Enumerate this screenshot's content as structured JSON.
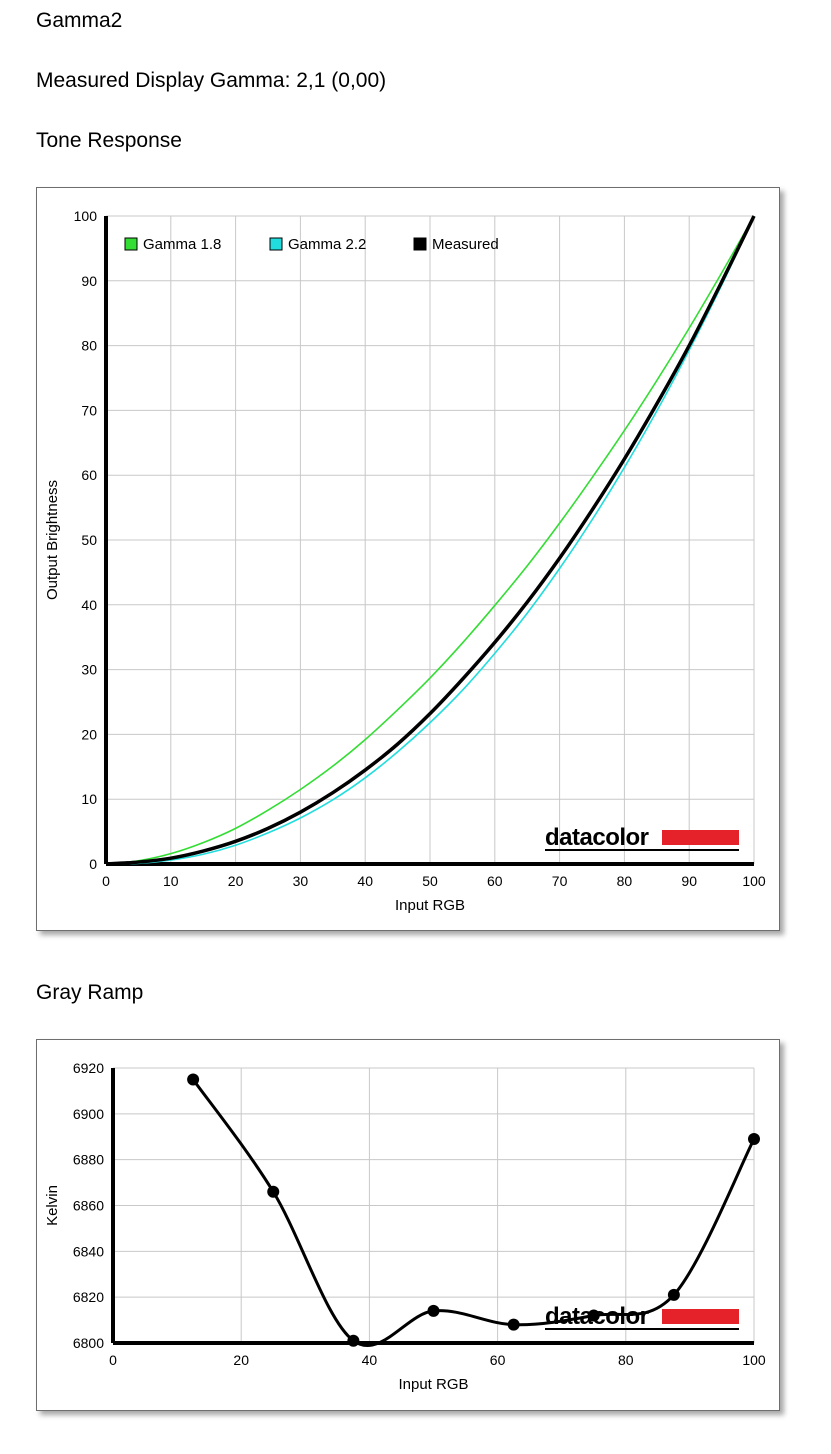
{
  "page": {
    "title": "Gamma2",
    "measured_gamma": "Measured Display Gamma: 2,1 (0,00)",
    "tone_heading": "Tone Response",
    "gray_heading": "Gray Ramp"
  },
  "logo": {
    "text": "datacolor",
    "color": "#e5222a"
  },
  "chart_data": [
    {
      "type": "line",
      "xlabel": "Input RGB",
      "ylabel": "Output Brightness",
      "xlim": [
        0,
        100
      ],
      "ylim": [
        0,
        100
      ],
      "x_ticks": [
        0,
        10,
        20,
        30,
        40,
        50,
        60,
        70,
        80,
        90,
        100
      ],
      "y_ticks": [
        0,
        10,
        20,
        30,
        40,
        50,
        60,
        70,
        80,
        90,
        100
      ],
      "grid": true,
      "legend": "top-left",
      "series": [
        {
          "name": "Gamma 1.8",
          "color": "#33dd33",
          "gamma": 1.8,
          "x": [
            0,
            5,
            10,
            15,
            20,
            25,
            30,
            35,
            40,
            45,
            50,
            55,
            60,
            65,
            70,
            75,
            80,
            85,
            90,
            95,
            100
          ],
          "y": [
            0,
            0.5,
            1.6,
            3.3,
            5.5,
            8.3,
            11.5,
            15.1,
            19.2,
            23.8,
            28.7,
            34.1,
            39.9,
            46.0,
            52.6,
            59.6,
            66.9,
            74.6,
            82.7,
            91.2,
            100
          ]
        },
        {
          "name": "Gamma 2.2",
          "color": "#22dddd",
          "gamma": 2.2,
          "x": [
            0,
            5,
            10,
            15,
            20,
            25,
            30,
            35,
            40,
            45,
            50,
            55,
            60,
            65,
            70,
            75,
            80,
            85,
            90,
            95,
            100
          ],
          "y": [
            0,
            0.1,
            0.6,
            1.5,
            2.9,
            4.8,
            7.1,
            9.9,
            13.3,
            17.3,
            21.8,
            26.8,
            32.5,
            38.7,
            45.6,
            53.1,
            61.2,
            69.9,
            79.3,
            89.3,
            100
          ]
        },
        {
          "name": "Measured",
          "color": "#000000",
          "gamma": 2.1,
          "x": [
            0,
            5,
            10,
            15,
            20,
            25,
            30,
            35,
            40,
            45,
            50,
            55,
            60,
            65,
            70,
            75,
            80,
            85,
            90,
            95,
            100
          ],
          "y": [
            0,
            0.3,
            0.9,
            2.0,
            3.5,
            5.5,
            8.0,
            11.0,
            14.5,
            18.5,
            23.2,
            28.5,
            34.2,
            40.4,
            47.2,
            54.6,
            62.5,
            71.0,
            80.0,
            89.8,
            100
          ]
        }
      ]
    },
    {
      "type": "line",
      "xlabel": "Input RGB",
      "ylabel": "Kelvin",
      "xlim": [
        0,
        100
      ],
      "ylim": [
        6800,
        6920
      ],
      "x_ticks": [
        0,
        20,
        40,
        60,
        80,
        100
      ],
      "y_ticks": [
        6800,
        6820,
        6840,
        6860,
        6880,
        6900,
        6920
      ],
      "grid": true,
      "series": [
        {
          "name": "",
          "color": "#000000",
          "x": [
            12.5,
            25,
            37.5,
            50,
            62.5,
            75,
            87.5,
            100
          ],
          "y": [
            6915,
            6866,
            6801,
            6814,
            6808,
            6812,
            6821,
            6889
          ]
        }
      ]
    }
  ]
}
